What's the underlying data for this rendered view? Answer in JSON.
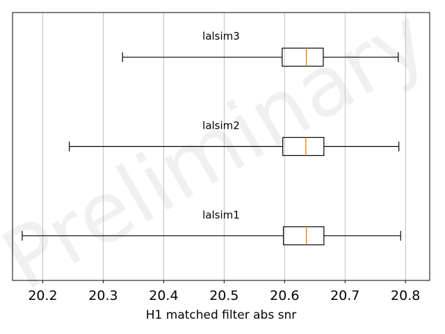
{
  "chart_data": {
    "type": "boxplot",
    "orientation": "horizontal",
    "xlabel": "H1 matched filter abs snr",
    "xlim": [
      20.15,
      20.84
    ],
    "xticks": [
      "20.2",
      "20.3",
      "20.4",
      "20.5",
      "20.6",
      "20.7",
      "20.8"
    ],
    "grid": "vertical",
    "watermark": "Preliminary",
    "series": [
      {
        "name": "lalsim1",
        "whisker_low": 20.166,
        "q1": 20.598,
        "median": 20.636,
        "q3": 20.665,
        "whisker_high": 20.792
      },
      {
        "name": "lalsim2",
        "whisker_low": 20.244,
        "q1": 20.597,
        "median": 20.635,
        "q3": 20.665,
        "whisker_high": 20.789
      },
      {
        "name": "lalsim3",
        "whisker_low": 20.332,
        "q1": 20.596,
        "median": 20.636,
        "q3": 20.664,
        "whisker_high": 20.788
      }
    ],
    "colors": {
      "box": "#000000",
      "median": "#ff7f0e",
      "grid": "#b0b0b0"
    }
  }
}
